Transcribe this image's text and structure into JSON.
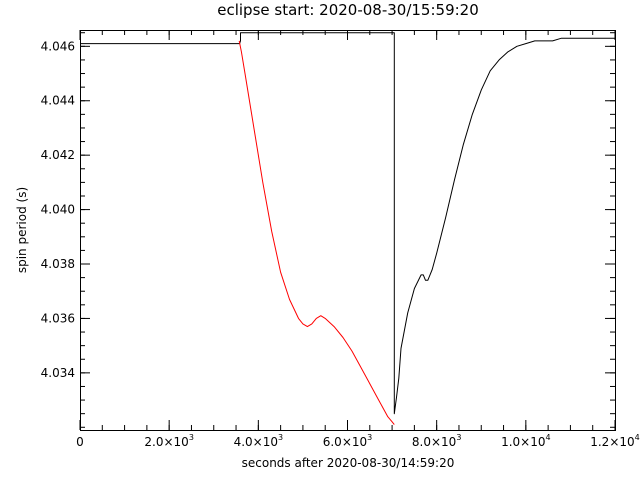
{
  "chart_data": {
    "type": "line",
    "title": "eclipse start: 2020-08-30/15:59:20",
    "xlabel": "seconds after 2020-08-30/14:59:20",
    "ylabel": "spin period (s)",
    "xlim": [
      0,
      12000
    ],
    "ylim": [
      4.0319,
      4.0466
    ],
    "grid": false,
    "x_ticks": [
      {
        "value": 0,
        "mant": "0",
        "exp": ""
      },
      {
        "value": 2000,
        "mant": "2.0×10",
        "exp": "3"
      },
      {
        "value": 4000,
        "mant": "4.0×10",
        "exp": "3"
      },
      {
        "value": 6000,
        "mant": "6.0×10",
        "exp": "3"
      },
      {
        "value": 8000,
        "mant": "8.0×10",
        "exp": "3"
      },
      {
        "value": 10000,
        "mant": "1.0×10",
        "exp": "4"
      },
      {
        "value": 12000,
        "mant": "1.2×10",
        "exp": "4"
      }
    ],
    "y_ticks": [
      {
        "value": 4.034,
        "label": "4.034"
      },
      {
        "value": 4.036,
        "label": "4.036"
      },
      {
        "value": 4.038,
        "label": "4.038"
      },
      {
        "value": 4.04,
        "label": "4.040"
      },
      {
        "value": 4.042,
        "label": "4.042"
      },
      {
        "value": 4.044,
        "label": "4.044"
      },
      {
        "value": 4.046,
        "label": "4.046"
      }
    ],
    "series": [
      {
        "color": "#000000",
        "x": [
          0,
          3580,
          3600,
          3600,
          7050,
          7050,
          7100,
          7150,
          7200,
          7350,
          7500,
          7650,
          7700,
          7750,
          7800,
          7850,
          7900,
          8000,
          8200,
          8400,
          8600,
          8800,
          9000,
          9200,
          9400,
          9600,
          9800,
          10000,
          10200,
          10400,
          10600,
          10800,
          11000,
          11500,
          12000
        ],
        "y": [
          4.0461,
          4.0461,
          4.0462,
          4.0465,
          4.0465,
          4.0325,
          4.0331,
          4.0338,
          4.0349,
          4.0362,
          4.0371,
          4.0376,
          4.0376,
          4.0374,
          4.0374,
          4.0376,
          4.0378,
          4.0384,
          4.0397,
          4.0411,
          4.0424,
          4.0435,
          4.0444,
          4.0451,
          4.0455,
          4.0458,
          4.046,
          4.0461,
          4.0462,
          4.0462,
          4.0462,
          4.0463,
          4.0463,
          4.0463,
          4.0463
        ]
      },
      {
        "color": "#ff0000",
        "x": [
          3570,
          3620,
          3700,
          3900,
          4100,
          4300,
          4500,
          4700,
          4900,
          5000,
          5100,
          5200,
          5300,
          5400,
          5500,
          5700,
          5900,
          6100,
          6300,
          6500,
          6700,
          6900,
          7000,
          7050
        ],
        "y": [
          4.0462,
          4.0458,
          4.045,
          4.043,
          4.041,
          4.0392,
          4.0377,
          4.0367,
          4.036,
          4.0358,
          4.0357,
          4.0358,
          4.036,
          4.0361,
          4.036,
          4.0357,
          4.0353,
          4.0348,
          4.0342,
          4.0336,
          4.033,
          4.0324,
          4.0322,
          4.0321
        ]
      }
    ]
  }
}
